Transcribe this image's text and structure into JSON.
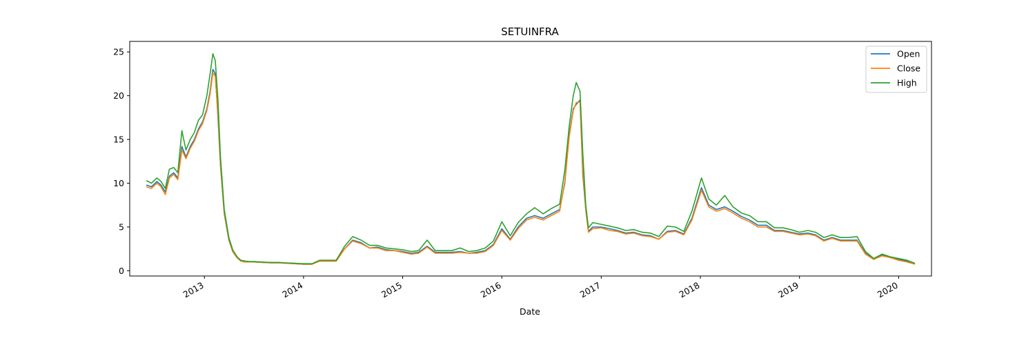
{
  "chart_data": {
    "type": "line",
    "title": "SETUINFRA",
    "xlabel": "Date",
    "ylabel": "",
    "xlim": [
      "2012-04-01",
      "2020-05-01"
    ],
    "ylim": [
      -0.6,
      26.2
    ],
    "y_ticks": [
      0,
      5,
      10,
      15,
      20,
      25
    ],
    "x_ticks": [
      "2013",
      "2014",
      "2015",
      "2016",
      "2017",
      "2018",
      "2019",
      "2020"
    ],
    "legend": {
      "placement": "top-right",
      "entries": [
        "Open",
        "Close",
        "High"
      ]
    },
    "grid": false,
    "x": [
      "2012-06-01",
      "2012-06-20",
      "2012-07-10",
      "2012-07-25",
      "2012-08-10",
      "2012-08-25",
      "2012-09-10",
      "2012-09-25",
      "2012-10-10",
      "2012-10-25",
      "2012-11-10",
      "2012-11-25",
      "2012-12-10",
      "2012-12-25",
      "2013-01-10",
      "2013-01-22",
      "2013-02-01",
      "2013-02-10",
      "2013-02-20",
      "2013-03-01",
      "2013-03-15",
      "2013-04-01",
      "2013-04-15",
      "2013-05-01",
      "2013-05-15",
      "2013-06-01",
      "2013-06-15",
      "2013-07-01",
      "2013-08-01",
      "2013-09-01",
      "2013-10-01",
      "2013-11-01",
      "2013-12-01",
      "2014-01-01",
      "2014-02-01",
      "2014-03-01",
      "2014-04-01",
      "2014-05-01",
      "2014-06-01",
      "2014-07-01",
      "2014-08-01",
      "2014-09-01",
      "2014-10-01",
      "2014-11-01",
      "2014-12-01",
      "2015-01-01",
      "2015-02-01",
      "2015-03-01",
      "2015-04-01",
      "2015-05-01",
      "2015-06-01",
      "2015-07-01",
      "2015-08-01",
      "2015-09-01",
      "2015-10-01",
      "2015-11-01",
      "2015-12-01",
      "2016-01-01",
      "2016-02-01",
      "2016-03-01",
      "2016-04-01",
      "2016-05-01",
      "2016-06-01",
      "2016-07-01",
      "2016-08-01",
      "2016-08-20",
      "2016-09-05",
      "2016-09-20",
      "2016-10-01",
      "2016-10-15",
      "2016-10-25",
      "2016-11-05",
      "2016-11-15",
      "2016-12-01",
      "2017-01-01",
      "2017-02-01",
      "2017-03-01",
      "2017-04-01",
      "2017-05-01",
      "2017-06-01",
      "2017-07-01",
      "2017-08-01",
      "2017-09-01",
      "2017-10-01",
      "2017-11-01",
      "2017-12-01",
      "2018-01-05",
      "2018-02-01",
      "2018-03-01",
      "2018-04-01",
      "2018-05-01",
      "2018-06-01",
      "2018-07-01",
      "2018-08-01",
      "2018-09-01",
      "2018-10-01",
      "2018-11-01",
      "2018-12-01",
      "2019-01-01",
      "2019-02-01",
      "2019-03-01",
      "2019-04-01",
      "2019-05-01",
      "2019-06-01",
      "2019-07-01",
      "2019-08-01",
      "2019-09-01",
      "2019-10-01",
      "2019-11-01",
      "2019-12-01",
      "2020-01-01",
      "2020-02-01",
      "2020-03-01"
    ],
    "series": [
      {
        "name": "Open",
        "color": "#1f77b4",
        "values": [
          9.8,
          9.6,
          10.2,
          9.8,
          9.0,
          10.8,
          11.2,
          10.6,
          14.2,
          13.0,
          14.2,
          15.0,
          16.2,
          17.0,
          18.5,
          20.5,
          23.0,
          22.5,
          17.5,
          12.0,
          6.5,
          3.5,
          2.2,
          1.5,
          1.1,
          1.0,
          1.0,
          1.0,
          0.95,
          0.9,
          0.9,
          0.85,
          0.8,
          0.75,
          0.75,
          1.1,
          1.1,
          1.1,
          2.5,
          3.5,
          3.2,
          2.6,
          2.7,
          2.4,
          2.3,
          2.2,
          2.0,
          2.1,
          2.8,
          2.1,
          2.1,
          2.1,
          2.2,
          2.0,
          2.1,
          2.3,
          3.0,
          4.8,
          3.6,
          5.0,
          6.0,
          6.3,
          6.0,
          6.5,
          7.0,
          10.0,
          15.5,
          18.5,
          19.0,
          19.5,
          11.0,
          7.0,
          4.5,
          5.0,
          5.0,
          4.8,
          4.6,
          4.3,
          4.4,
          4.1,
          4.0,
          3.6,
          4.5,
          4.6,
          4.2,
          6.0,
          9.5,
          7.5,
          7.0,
          7.3,
          6.8,
          6.2,
          5.8,
          5.2,
          5.2,
          4.6,
          4.6,
          4.4,
          4.2,
          4.3,
          4.1,
          3.5,
          3.8,
          3.5,
          3.5,
          3.5,
          2.0,
          1.3,
          1.8,
          1.5,
          1.3,
          1.1,
          0.8
        ]
      },
      {
        "name": "Close",
        "color": "#ff7f0e",
        "values": [
          9.6,
          9.4,
          10.0,
          9.6,
          8.7,
          10.6,
          11.0,
          10.4,
          13.8,
          12.8,
          14.0,
          14.8,
          16.0,
          16.8,
          18.3,
          20.2,
          22.6,
          22.2,
          17.8,
          12.2,
          6.6,
          3.6,
          2.2,
          1.5,
          1.1,
          1.0,
          1.0,
          1.0,
          0.95,
          0.9,
          0.9,
          0.85,
          0.8,
          0.75,
          0.75,
          1.1,
          1.1,
          1.1,
          2.5,
          3.4,
          3.1,
          2.6,
          2.6,
          2.3,
          2.3,
          2.1,
          1.9,
          2.0,
          2.7,
          2.0,
          2.0,
          2.0,
          2.1,
          2.0,
          2.0,
          2.2,
          2.9,
          4.6,
          3.5,
          4.8,
          5.8,
          6.1,
          5.8,
          6.3,
          6.8,
          10.2,
          15.3,
          18.3,
          19.2,
          19.3,
          11.5,
          7.0,
          4.4,
          4.8,
          4.9,
          4.6,
          4.5,
          4.2,
          4.3,
          4.0,
          3.9,
          3.6,
          4.4,
          4.5,
          4.1,
          5.8,
          9.2,
          7.3,
          6.8,
          7.1,
          6.6,
          6.0,
          5.6,
          5.0,
          5.0,
          4.5,
          4.5,
          4.3,
          4.1,
          4.2,
          4.0,
          3.4,
          3.7,
          3.4,
          3.4,
          3.4,
          1.9,
          1.3,
          1.7,
          1.5,
          1.2,
          1.0,
          0.75
        ]
      },
      {
        "name": "High",
        "color": "#2ca02c",
        "values": [
          10.3,
          10.0,
          10.6,
          10.2,
          9.4,
          11.6,
          11.8,
          11.2,
          16.0,
          13.8,
          15.0,
          15.8,
          17.2,
          17.8,
          20.0,
          22.5,
          24.8,
          24.0,
          19.5,
          13.0,
          7.0,
          3.8,
          2.4,
          1.6,
          1.2,
          1.1,
          1.05,
          1.05,
          1.0,
          0.95,
          0.95,
          0.9,
          0.85,
          0.8,
          0.8,
          1.2,
          1.2,
          1.2,
          2.8,
          3.9,
          3.5,
          2.9,
          2.9,
          2.6,
          2.5,
          2.4,
          2.2,
          2.3,
          3.5,
          2.3,
          2.3,
          2.3,
          2.6,
          2.2,
          2.3,
          2.6,
          3.4,
          5.6,
          4.0,
          5.5,
          6.5,
          7.2,
          6.5,
          7.1,
          7.6,
          11.5,
          16.5,
          20.0,
          21.5,
          20.5,
          13.5,
          7.5,
          4.9,
          5.5,
          5.3,
          5.1,
          4.9,
          4.6,
          4.7,
          4.4,
          4.3,
          3.9,
          5.1,
          5.0,
          4.5,
          6.8,
          10.6,
          8.2,
          7.5,
          8.6,
          7.3,
          6.6,
          6.3,
          5.6,
          5.6,
          4.9,
          4.9,
          4.7,
          4.4,
          4.6,
          4.4,
          3.8,
          4.1,
          3.8,
          3.8,
          3.9,
          2.2,
          1.4,
          1.9,
          1.6,
          1.4,
          1.2,
          0.85
        ]
      }
    ]
  }
}
